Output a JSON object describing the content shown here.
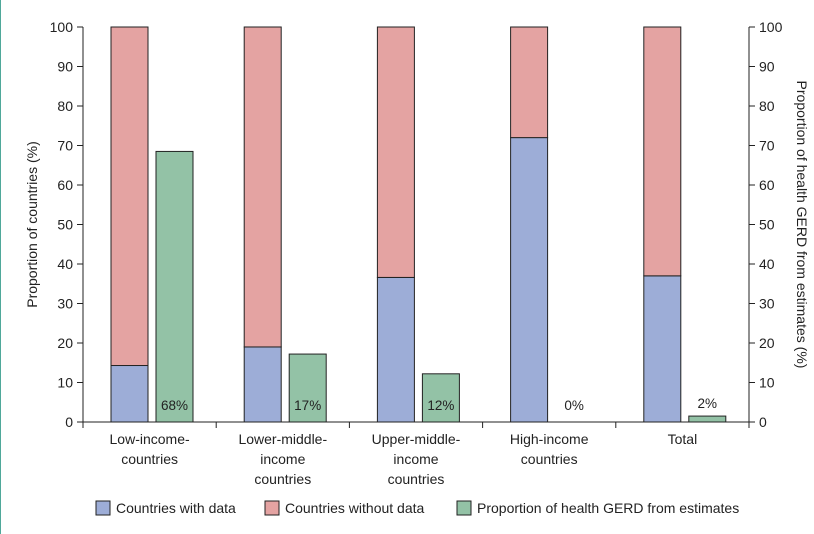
{
  "chart_data": {
    "type": "bar",
    "categories": [
      [
        "Low-income-",
        "countries"
      ],
      [
        "Lower-middle-",
        "income",
        "countries"
      ],
      [
        "Upper-middle-",
        "income",
        "countries"
      ],
      [
        "High-income",
        "countries"
      ],
      [
        "Total"
      ]
    ],
    "ylabel_left": "Proportion of countries (%)",
    "ylabel_right": "Proportion of health GERD from estimates (%)",
    "ylim": [
      0,
      100
    ],
    "yticks": [
      0,
      10,
      20,
      30,
      40,
      50,
      60,
      70,
      80,
      90,
      100
    ],
    "stacked_series": [
      {
        "name": "Countries with data",
        "values": [
          14.3,
          19,
          36.6,
          72,
          37
        ],
        "color": "#9dadd7"
      },
      {
        "name": "Countries without data",
        "values": [
          85.7,
          81,
          63.4,
          28,
          63
        ],
        "color": "#e4a3a2"
      }
    ],
    "side_series": {
      "name": "Proportion of health GERD from estimates",
      "values": [
        68.5,
        17.2,
        12.2,
        0,
        1.5
      ],
      "labels": [
        "68%",
        "17%",
        "12%",
        "0%",
        "2%"
      ],
      "color": "#93c2a6"
    },
    "legend_position": "bottom",
    "grid": false
  }
}
